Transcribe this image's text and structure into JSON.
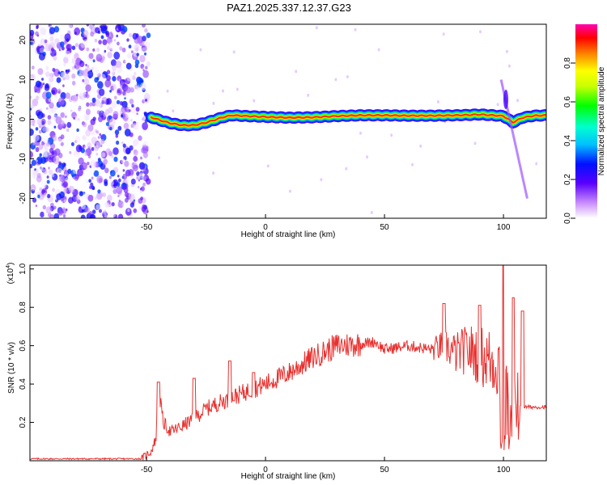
{
  "title": "PAZ1.2025.337.12.37.G23",
  "chart_data": [
    {
      "type": "heatmap",
      "title": "PAZ1.2025.337.12.37.G23",
      "xlabel": "Height of straight line (km)",
      "ylabel": "Frequency (Hz)",
      "xlim": [
        -99,
        118
      ],
      "ylim": [
        -25,
        24
      ],
      "xticks": [
        -50,
        0,
        50,
        100
      ],
      "yticks": [
        -20,
        -10,
        0,
        10,
        20
      ],
      "colorbar": {
        "label": "Normalized spectral amplitude",
        "range": [
          0,
          1
        ],
        "ticks": [
          0,
          0.2,
          0.4,
          0.6,
          0.8
        ],
        "tick_labels": [
          "0.0",
          "0.2",
          "0.4",
          "0.6",
          "0.8"
        ]
      },
      "noise_region_x": [
        -99,
        -49
      ],
      "ridge": [
        {
          "x": -48,
          "freq": 0.5
        },
        {
          "x": -44,
          "freq": -0.3
        },
        {
          "x": -40,
          "freq": -1.0
        },
        {
          "x": -35,
          "freq": -1.5
        },
        {
          "x": -30,
          "freq": -1.5
        },
        {
          "x": -26,
          "freq": -1.0
        },
        {
          "x": -22,
          "freq": -0.3
        },
        {
          "x": -18,
          "freq": 0.5
        },
        {
          "x": -14,
          "freq": 1.0
        },
        {
          "x": -8,
          "freq": 0.8
        },
        {
          "x": 0,
          "freq": 0.6
        },
        {
          "x": 10,
          "freq": 0.4
        },
        {
          "x": 20,
          "freq": 0.5
        },
        {
          "x": 30,
          "freq": 0.8
        },
        {
          "x": 40,
          "freq": 1.0
        },
        {
          "x": 50,
          "freq": 1.0
        },
        {
          "x": 60,
          "freq": 0.9
        },
        {
          "x": 70,
          "freq": 0.9
        },
        {
          "x": 80,
          "freq": 1.0
        },
        {
          "x": 90,
          "freq": 1.2
        },
        {
          "x": 96,
          "freq": 1.0
        },
        {
          "x": 100,
          "freq": 0.8
        },
        {
          "x": 104,
          "freq": -0.8
        },
        {
          "x": 108,
          "freq": 0.4
        },
        {
          "x": 113,
          "freq": 0.9
        },
        {
          "x": 118,
          "freq": 1.0
        }
      ],
      "ridge_amplitude": 0.85
    },
    {
      "type": "line",
      "xlabel": "Height of straight line (km)",
      "ylabel": "SNR (10 * v/v)",
      "exponent_label": "(x10",
      "exponent_power": "4",
      "exponent_close": ")",
      "xlim": [
        -99,
        118
      ],
      "ylim": [
        0,
        1.02
      ],
      "xticks": [
        -50,
        0,
        50,
        100
      ],
      "yticks": [
        0.2,
        0.4,
        0.6,
        0.8,
        1.0
      ],
      "ytick_labels": [
        "0.2",
        "0.4",
        "0.6",
        "0.8",
        "1.0"
      ],
      "series": [
        {
          "name": "SNR",
          "color": "#e8302e",
          "envelope": [
            {
              "x": -99,
              "y": 0.01
            },
            {
              "x": -60,
              "y": 0.01
            },
            {
              "x": -52,
              "y": 0.01
            },
            {
              "x": -48,
              "y": 0.05
            },
            {
              "x": -46,
              "y": 0.12
            },
            {
              "x": -45,
              "y": 0.38
            },
            {
              "x": -43,
              "y": 0.2
            },
            {
              "x": -40,
              "y": 0.15
            },
            {
              "x": -35,
              "y": 0.18
            },
            {
              "x": -30,
              "y": 0.22
            },
            {
              "x": -25,
              "y": 0.27
            },
            {
              "x": -20,
              "y": 0.3
            },
            {
              "x": -10,
              "y": 0.35
            },
            {
              "x": 0,
              "y": 0.4
            },
            {
              "x": 10,
              "y": 0.46
            },
            {
              "x": 20,
              "y": 0.54
            },
            {
              "x": 30,
              "y": 0.6
            },
            {
              "x": 40,
              "y": 0.61
            },
            {
              "x": 46,
              "y": 0.62
            },
            {
              "x": 50,
              "y": 0.58
            },
            {
              "x": 60,
              "y": 0.6
            },
            {
              "x": 70,
              "y": 0.58
            },
            {
              "x": 75,
              "y": 0.6
            },
            {
              "x": 80,
              "y": 0.56
            },
            {
              "x": 85,
              "y": 0.58
            },
            {
              "x": 90,
              "y": 0.55
            },
            {
              "x": 95,
              "y": 0.52
            },
            {
              "x": 100,
              "y": 0.5
            },
            {
              "x": 103,
              "y": 0.1
            },
            {
              "x": 105,
              "y": 0.4
            },
            {
              "x": 107,
              "y": 0.28
            },
            {
              "x": 118,
              "y": 0.28
            }
          ],
          "spikes": [
            {
              "x": -45,
              "y": 0.41
            },
            {
              "x": -30,
              "y": 0.43
            },
            {
              "x": -15,
              "y": 0.52
            },
            {
              "x": -5,
              "y": 0.46
            },
            {
              "x": 75,
              "y": 0.82
            },
            {
              "x": 90,
              "y": 0.81
            },
            {
              "x": 100,
              "y": 1.02
            },
            {
              "x": 104,
              "y": 0.85
            },
            {
              "x": 108,
              "y": 0.78
            }
          ]
        }
      ]
    }
  ]
}
